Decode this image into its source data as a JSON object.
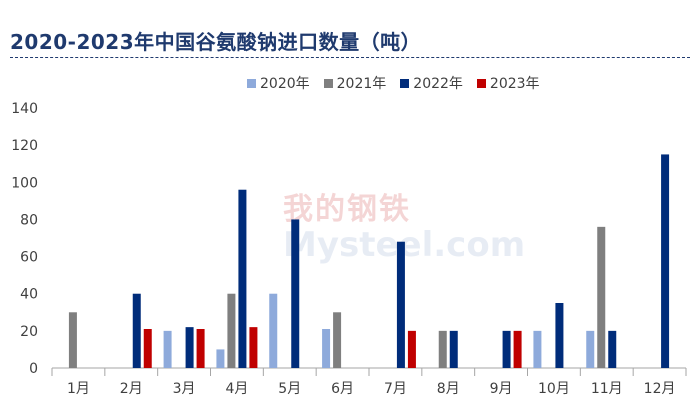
{
  "title": "2020-2023年中国谷氨酸钠进口数量（吨）",
  "watermark": {
    "line1": "我的钢铁",
    "line2": "Mysteel.com"
  },
  "chart_data": {
    "type": "bar",
    "title": "2020-2023年中国谷氨酸钠进口数量（吨）",
    "categories": [
      "1月",
      "2月",
      "3月",
      "4月",
      "5月",
      "6月",
      "7月",
      "8月",
      "9月",
      "10月",
      "11月",
      "12月"
    ],
    "ylim": [
      0,
      140
    ],
    "yticks": [
      "0",
      "20",
      "40",
      "60",
      "80",
      "100",
      "120",
      "140"
    ],
    "grid": false,
    "legend_position": "top",
    "series": [
      {
        "name": "2020年",
        "color": "#8eaadb",
        "values": [
          null,
          null,
          20,
          10,
          40,
          21,
          null,
          null,
          null,
          20,
          20,
          null
        ]
      },
      {
        "name": "2021年",
        "color": "#7f7f7f",
        "values": [
          30,
          null,
          null,
          40,
          null,
          30,
          null,
          20,
          null,
          null,
          76,
          null
        ]
      },
      {
        "name": "2022年",
        "color": "#002c7a",
        "values": [
          null,
          40,
          22,
          96,
          80,
          null,
          68,
          20,
          20,
          35,
          20,
          115
        ]
      },
      {
        "name": "2023年",
        "color": "#c00000",
        "values": [
          null,
          21,
          21,
          22,
          null,
          null,
          20,
          null,
          20,
          null,
          null,
          null
        ]
      }
    ]
  }
}
